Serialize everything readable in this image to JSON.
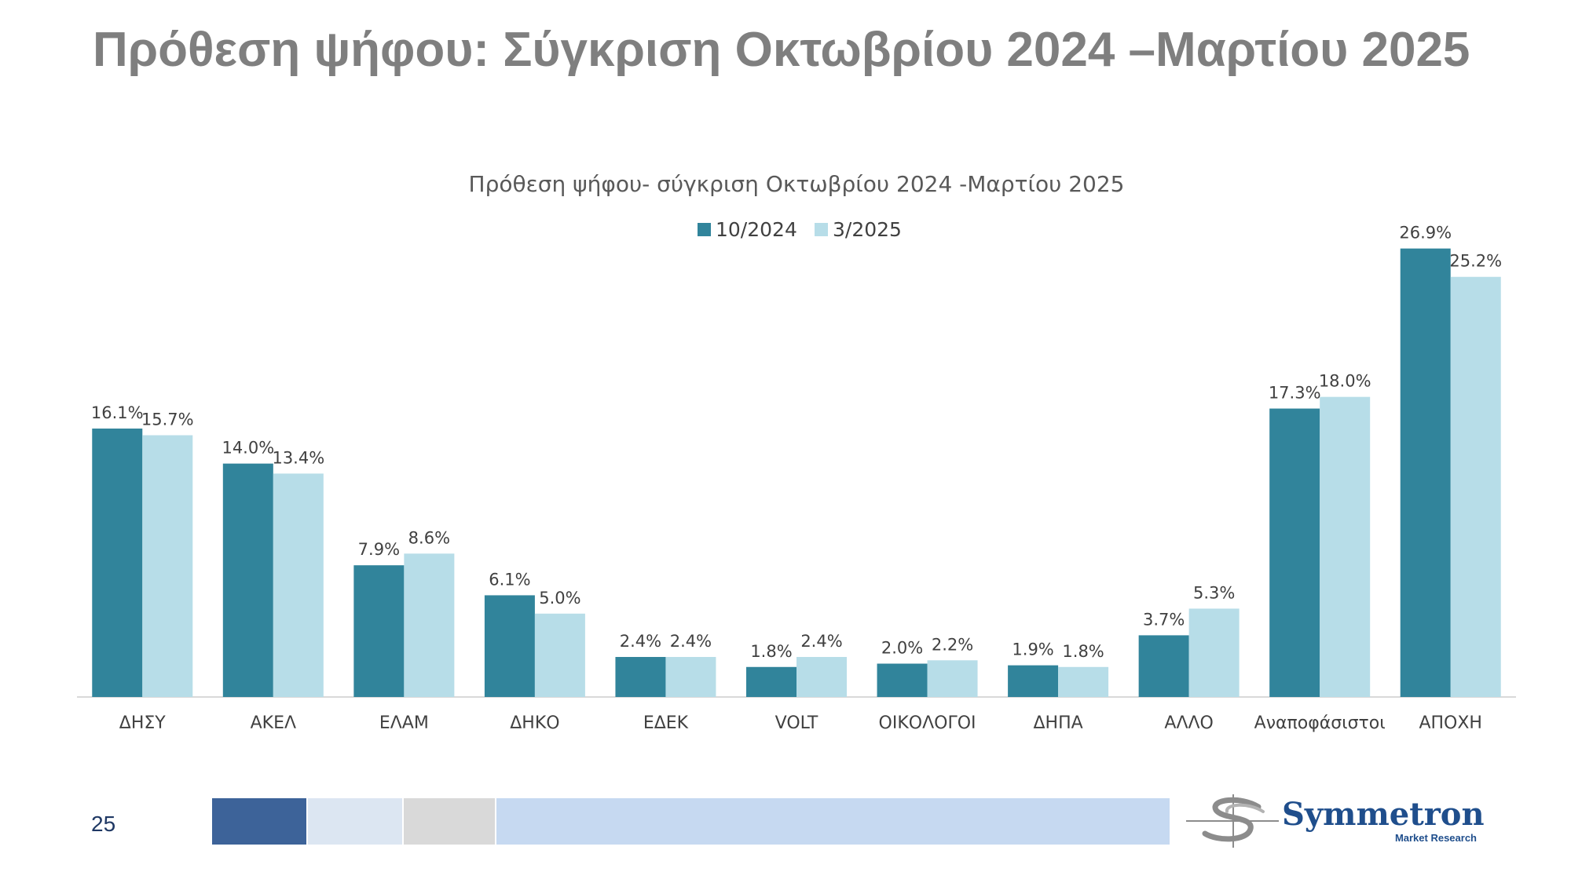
{
  "page": {
    "title": "Πρόθεση ψήφου: Σύγκριση Οκτωβρίου 2024 –Μαρτίου 2025",
    "page_number": "25"
  },
  "logo": {
    "name": "Symmetron",
    "subtitle": "Market Research"
  },
  "colors": {
    "series1": "#31849b",
    "series2": "#b7dde8",
    "footer_strip": [
      "#3d6399",
      "#dce6f2",
      "#d9d9d9",
      "#c6d9f1"
    ]
  },
  "chart_data": {
    "type": "bar",
    "title": "Πρόθεση ψήφου- σύγκριση Οκτωβρίου 2024 -Μαρτίου 2025",
    "xlabel": "",
    "ylabel": "",
    "legend_position": "top",
    "grid": false,
    "ylim": [
      0,
      28
    ],
    "categories": [
      "ΔΗΣΥ",
      "ΑΚΕΛ",
      "ΕΛΑΜ",
      "ΔΗΚΟ",
      "ΕΔΕΚ",
      "VOLT",
      "ΟΙΚΟΛΟΓΟΙ",
      "ΔΗΠΑ",
      "ΑΛΛΟ",
      "Αναποφάσιστοι",
      "ΑΠΟΧΗ"
    ],
    "series": [
      {
        "name": "10/2024",
        "values": [
          16.1,
          14.0,
          7.9,
          6.1,
          2.4,
          1.8,
          2.0,
          1.9,
          3.7,
          17.3,
          26.9
        ],
        "labels": [
          "16.1%",
          "14.0%",
          "7.9%",
          "6.1%",
          "2.4%",
          "1.8%",
          "2.0%",
          "1.9%",
          "3.7%",
          "17.3%",
          "26.9%"
        ]
      },
      {
        "name": "3/2025",
        "values": [
          15.7,
          13.4,
          8.6,
          5.0,
          2.4,
          2.4,
          2.2,
          1.8,
          5.3,
          18.0,
          25.2
        ],
        "labels": [
          "15.7%",
          "13.4%",
          "8.6%",
          "5.0%",
          "2.4%",
          "2.4%",
          "2.2%",
          "1.8%",
          "5.3%",
          "18.0%",
          "25.2%"
        ]
      }
    ]
  }
}
